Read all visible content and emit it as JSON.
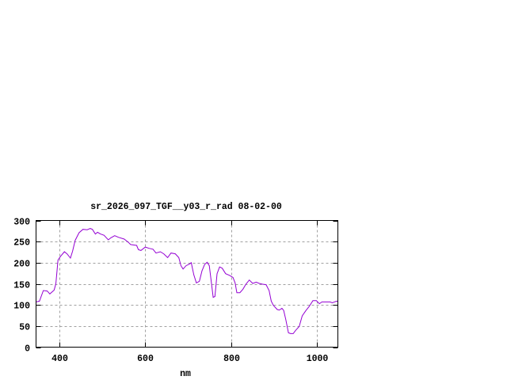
{
  "chart_data": {
    "type": "line",
    "title": "sr_2026_097_TGF__y03_r_rad 08-02-00",
    "xlabel": "nm",
    "ylabel": "",
    "xlim": [
      346,
      1048
    ],
    "ylim": [
      0,
      300
    ],
    "xticks": [
      400,
      600,
      800,
      1000
    ],
    "yticks": [
      0,
      50,
      100,
      150,
      200,
      250,
      300
    ],
    "grid": true,
    "line_color": "#9400d3",
    "series": [
      {
        "x": [
          346,
          354,
          363,
          372,
          378,
          388,
          392,
          397,
          403,
          412,
          418,
          426,
          431,
          437,
          446,
          455,
          465,
          472,
          477,
          484,
          489,
          496,
          504,
          514,
          520,
          529,
          538,
          551,
          560,
          566,
          572,
          580,
          584,
          590,
          600,
          609,
          618,
          625,
          635,
          643,
          652,
          660,
          670,
          678,
          683,
          688,
          695,
          703,
          707,
          713,
          719,
          726,
          732,
          738,
          744,
          749,
          754,
          758,
          762,
          767,
          773,
          779,
          787,
          796,
          804,
          809,
          813,
          820,
          827,
          834,
          842,
          850,
          858,
          865,
          873,
          881,
          888,
          893,
          898,
          907,
          912,
          918,
          922,
          927,
          933,
          938,
          944,
          950,
          958,
          965,
          974,
          981,
          990,
          998,
          1005,
          1011,
          1021,
          1030,
          1035,
          1045,
          1048
        ],
        "y": [
          107,
          109,
          134,
          133,
          126,
          135,
          150,
          206,
          215,
          226,
          221,
          211,
          227,
          253,
          271,
          279,
          278,
          281,
          279,
          268,
          272,
          268,
          265,
          254,
          259,
          264,
          260,
          256,
          249,
          243,
          242,
          241,
          231,
          229,
          237,
          234,
          232,
          223,
          226,
          221,
          212,
          223,
          221,
          212,
          193,
          185,
          193,
          197,
          200,
          171,
          152,
          156,
          181,
          196,
          201,
          193,
          152,
          118,
          120,
          174,
          190,
          187,
          174,
          170,
          165,
          152,
          129,
          129,
          137,
          149,
          159,
          151,
          154,
          151,
          149,
          148,
          134,
          109,
          99,
          89,
          88,
          92,
          87,
          65,
          34,
          32,
          32,
          40,
          49,
          74,
          87,
          96,
          110,
          110,
          103,
          107,
          107,
          107,
          105,
          109,
          108
        ]
      }
    ]
  }
}
